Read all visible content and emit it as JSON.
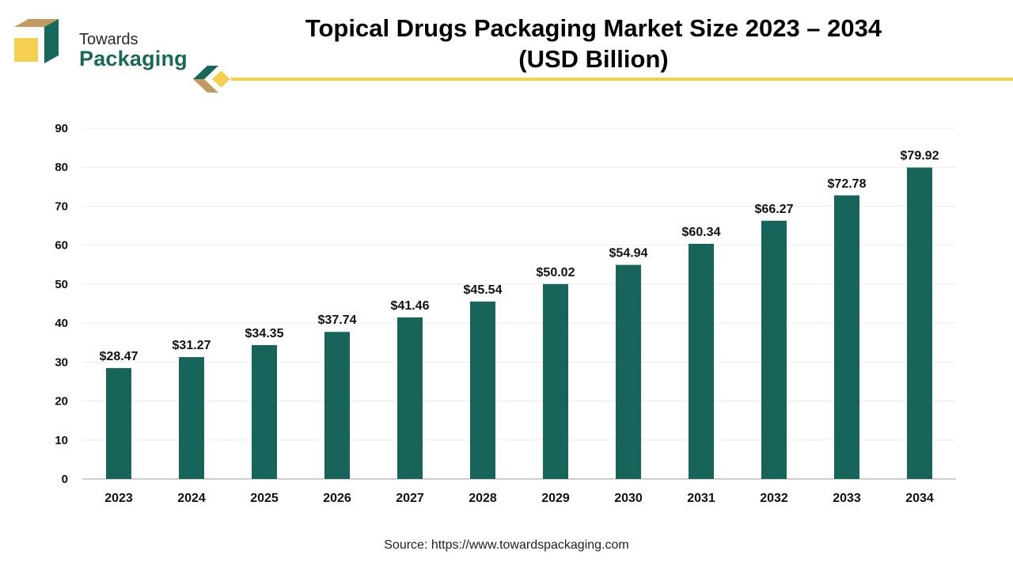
{
  "brand": {
    "line1": "Towards",
    "line2": "Packaging",
    "colors": {
      "green": "#17695a",
      "gold": "#f5cf4f",
      "tan": "#c49a62"
    }
  },
  "header": {
    "title_line1": "Topical Drugs Packaging Market Size 2023 – 2034",
    "title_line2": "(USD Billion)"
  },
  "footer": {
    "source": "Source: https://www.towardspackaging.com"
  },
  "chart_data": {
    "type": "bar",
    "title": "Topical Drugs Packaging Market Size 2023 – 2034 (USD Billion)",
    "xlabel": "",
    "ylabel": "",
    "categories": [
      "2023",
      "2024",
      "2025",
      "2026",
      "2027",
      "2028",
      "2029",
      "2030",
      "2031",
      "2032",
      "2033",
      "2034"
    ],
    "values": [
      28.47,
      31.27,
      34.35,
      37.74,
      41.46,
      45.54,
      50.02,
      54.94,
      60.34,
      66.27,
      72.78,
      79.92
    ],
    "data_labels": [
      "$28.47",
      "$31.27",
      "$34.35",
      "$37.74",
      "$41.46",
      "$45.54",
      "$50.02",
      "$54.94",
      "$60.34",
      "$66.27",
      "$72.78",
      "$79.92"
    ],
    "yticks": [
      0,
      10,
      20,
      30,
      40,
      50,
      60,
      70,
      80,
      90
    ],
    "ylim": [
      0,
      90
    ],
    "grid": true,
    "legend": "none",
    "bar_color": "#17645a"
  }
}
